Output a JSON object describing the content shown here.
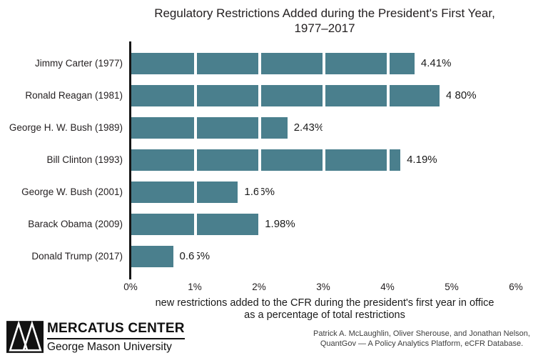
{
  "chart": {
    "title_line1": "Regulatory Restrictions Added during the President's First Year,",
    "title_line2": "1977–2017",
    "xlabel_line1": "new restrictions added to the CFR during the president's first year in office",
    "xlabel_line2": "as a percentage of total restrictions"
  },
  "chart_data": {
    "type": "bar",
    "orientation": "horizontal",
    "title": "Regulatory Restrictions Added during the President's First Year, 1977–2017",
    "categories": [
      "Jimmy Carter (1977)",
      "Ronald Reagan (1981)",
      "George H. W. Bush (1989)",
      "Bill Clinton (1993)",
      "George W. Bush (2001)",
      "Barack Obama (2009)",
      "Donald Trump (2017)"
    ],
    "values": [
      4.41,
      4.8,
      2.43,
      4.19,
      1.66,
      1.98,
      0.65
    ],
    "value_labels": [
      "4.41%",
      "4.80%",
      "2.43%",
      "4.19%",
      "1.66%",
      "1.98%",
      "0.65%"
    ],
    "x_ticks": [
      "0%",
      "1%",
      "2%",
      "3%",
      "4%",
      "5%",
      "6%"
    ],
    "xlim": [
      0,
      6
    ],
    "xlabel": "new restrictions added to the CFR during the president's first year in office as a percentage of total restrictions",
    "bar_color": "#4A7F8D",
    "gridline_color": "#FFFFFF",
    "axis_color": "#161616",
    "grid": true,
    "legend": false
  },
  "footer": {
    "logo_org": "MERCATUS CENTER",
    "logo_sub": "George Mason University",
    "attribution_line1": "Patrick A. McLaughlin, Oliver Sherouse, and Jonathan Nelson,",
    "attribution_line2": "QuantGov — A Policy Analytics Platform, eCFR Database."
  }
}
